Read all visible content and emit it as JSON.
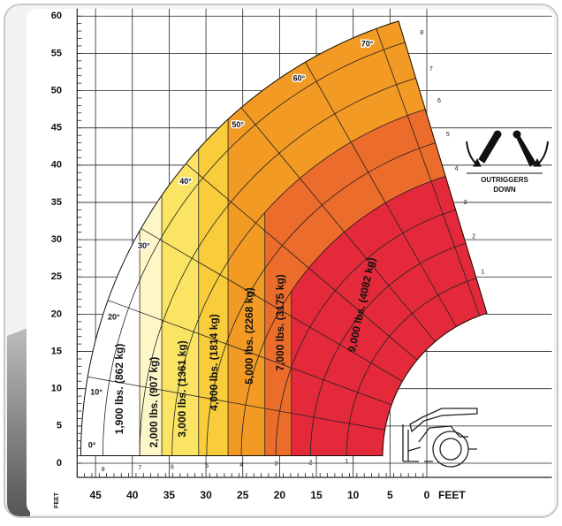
{
  "chart_data": {
    "type": "load-chart",
    "xlim": [
      47.5,
      -17
    ],
    "ylim": [
      -1.9,
      61
    ],
    "xticks": [
      45,
      40,
      35,
      30,
      25,
      20,
      15,
      10,
      5,
      0
    ],
    "yticks": [
      0,
      5,
      10,
      15,
      20,
      25,
      30,
      35,
      40,
      45,
      50,
      55,
      60
    ],
    "grid": true,
    "x_label": "FEET",
    "y_label": "FEET",
    "angle_labels": [
      "0°",
      "10°",
      "20°",
      "30°",
      "40°",
      "50°",
      "60°",
      "70°"
    ],
    "extension_labels": [
      "1",
      "2",
      "3",
      "4",
      "5",
      "6",
      "7",
      "8"
    ],
    "zones": [
      {
        "label": "1,900 lbs. (862 kg)",
        "color": "#ffffff"
      },
      {
        "label": "2,000 lbs. (907 kg)",
        "color": "#fdf7c8"
      },
      {
        "label": "3,000 lbs. (1361 kg)",
        "color": "#fbe464"
      },
      {
        "label": "4,000 lbs. (1814 kg)",
        "color": "#f8cc3a"
      },
      {
        "label": "5,000 lbs. (2268 kg)",
        "color": "#f29a24"
      },
      {
        "label": "7,000 lbs. (3175 kg)",
        "color": "#ec6c2b"
      },
      {
        "label": "9,000 lbs. (4082 kg)",
        "color": "#e42a3a"
      }
    ],
    "annotation_lines": [
      "OUTRIGGERS",
      "DOWN"
    ]
  }
}
